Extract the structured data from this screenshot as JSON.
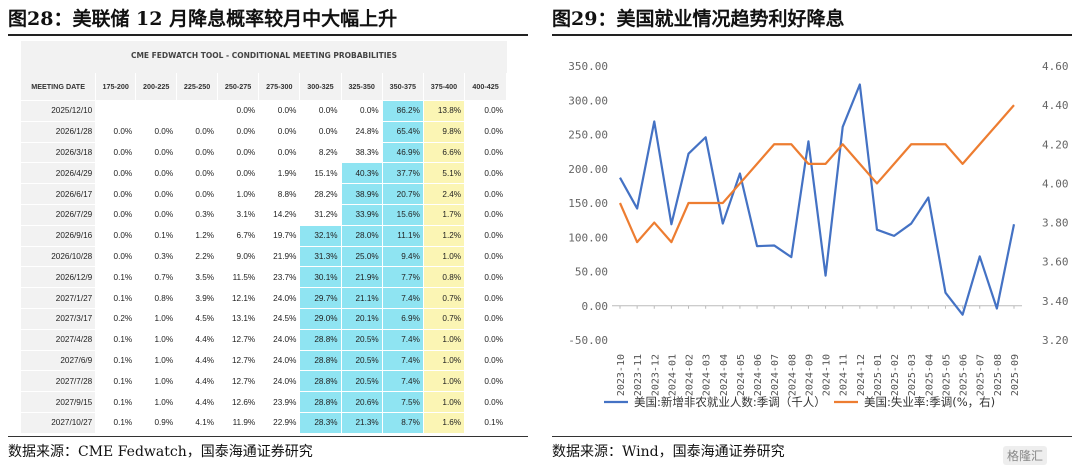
{
  "left_panel": {
    "title": "图28：美联储 12 月降息概率较月中大幅上升",
    "table_banner": "CME FEDWATCH TOOL - CONDITIONAL MEETING PROBABILITIES",
    "source": "数据来源：CME Fedwatch，国泰海通证券研究",
    "colors": {
      "highlight_max": "#8fe4f2",
      "highlight_second": "#fbf5b4",
      "background": "#f2f2f2"
    }
  },
  "right_panel": {
    "title": "图29：美国就业情况趋势利好降息",
    "source": "数据来源：Wind，国泰海通证券研究",
    "watermark": "格隆汇"
  },
  "chart_data": [
    {
      "type": "table",
      "title": "CME FEDWATCH TOOL - CONDITIONAL MEETING PROBABILITIES",
      "columns": [
        "MEETING DATE",
        "175-200",
        "200-225",
        "225-250",
        "250-275",
        "275-300",
        "300-325",
        "325-350",
        "350-375",
        "375-400",
        "400-425"
      ],
      "rows": [
        {
          "date": "2025/12/10",
          "values": [
            "",
            "",
            "",
            "0.0%",
            "0.0%",
            "0.0%",
            "0.0%",
            "86.2%",
            "13.8%",
            "0.0%"
          ],
          "hl": [
            7,
            8
          ]
        },
        {
          "date": "2026/1/28",
          "values": [
            "0.0%",
            "0.0%",
            "0.0%",
            "0.0%",
            "0.0%",
            "0.0%",
            "24.8%",
            "65.4%",
            "9.8%",
            "0.0%"
          ],
          "hl": [
            7,
            8
          ]
        },
        {
          "date": "2026/3/18",
          "values": [
            "0.0%",
            "0.0%",
            "0.0%",
            "0.0%",
            "0.0%",
            "8.2%",
            "38.3%",
            "46.9%",
            "6.6%",
            "0.0%"
          ],
          "hl": [
            7,
            8
          ]
        },
        {
          "date": "2026/4/29",
          "values": [
            "0.0%",
            "0.0%",
            "0.0%",
            "0.0%",
            "1.9%",
            "15.1%",
            "40.3%",
            "37.7%",
            "5.1%",
            "0.0%"
          ],
          "hl": [
            6,
            7,
            8
          ]
        },
        {
          "date": "2026/6/17",
          "values": [
            "0.0%",
            "0.0%",
            "0.0%",
            "1.0%",
            "8.8%",
            "28.2%",
            "38.9%",
            "20.7%",
            "2.4%",
            "0.0%"
          ],
          "hl": [
            6,
            7,
            8
          ]
        },
        {
          "date": "2026/7/29",
          "values": [
            "0.0%",
            "0.0%",
            "0.3%",
            "3.1%",
            "14.2%",
            "31.2%",
            "33.9%",
            "15.6%",
            "1.7%",
            "0.0%"
          ],
          "hl": [
            6,
            7,
            8
          ]
        },
        {
          "date": "2026/9/16",
          "values": [
            "0.0%",
            "0.1%",
            "1.2%",
            "6.7%",
            "19.7%",
            "32.1%",
            "28.0%",
            "11.1%",
            "1.2%",
            "0.0%"
          ],
          "hl": [
            5,
            6,
            7,
            8
          ]
        },
        {
          "date": "2026/10/28",
          "values": [
            "0.0%",
            "0.3%",
            "2.2%",
            "9.0%",
            "21.9%",
            "31.3%",
            "25.0%",
            "9.4%",
            "1.0%",
            "0.0%"
          ],
          "hl": [
            5,
            6,
            7,
            8
          ]
        },
        {
          "date": "2026/12/9",
          "values": [
            "0.1%",
            "0.7%",
            "3.5%",
            "11.5%",
            "23.7%",
            "30.1%",
            "21.9%",
            "7.7%",
            "0.8%",
            "0.0%"
          ],
          "hl": [
            5,
            6,
            7,
            8
          ]
        },
        {
          "date": "2027/1/27",
          "values": [
            "0.1%",
            "0.8%",
            "3.9%",
            "12.1%",
            "24.0%",
            "29.7%",
            "21.1%",
            "7.4%",
            "0.7%",
            "0.0%"
          ],
          "hl": [
            5,
            6,
            7,
            8
          ]
        },
        {
          "date": "2027/3/17",
          "values": [
            "0.2%",
            "1.0%",
            "4.5%",
            "13.1%",
            "24.5%",
            "29.0%",
            "20.1%",
            "6.9%",
            "0.7%",
            "0.0%"
          ],
          "hl": [
            5,
            6,
            7,
            8
          ]
        },
        {
          "date": "2027/4/28",
          "values": [
            "0.1%",
            "1.0%",
            "4.4%",
            "12.7%",
            "24.0%",
            "28.8%",
            "20.5%",
            "7.4%",
            "1.0%",
            "0.0%"
          ],
          "hl": [
            5,
            6,
            7,
            8
          ]
        },
        {
          "date": "2027/6/9",
          "values": [
            "0.1%",
            "1.0%",
            "4.4%",
            "12.7%",
            "24.0%",
            "28.8%",
            "20.5%",
            "7.4%",
            "1.0%",
            "0.0%"
          ],
          "hl": [
            5,
            6,
            7,
            8
          ]
        },
        {
          "date": "2027/7/28",
          "values": [
            "0.1%",
            "1.0%",
            "4.4%",
            "12.7%",
            "24.0%",
            "28.8%",
            "20.5%",
            "7.4%",
            "1.0%",
            "0.0%"
          ],
          "hl": [
            5,
            6,
            7,
            8
          ]
        },
        {
          "date": "2027/9/15",
          "values": [
            "0.1%",
            "1.0%",
            "4.4%",
            "12.6%",
            "23.9%",
            "28.8%",
            "20.6%",
            "7.5%",
            "1.0%",
            "0.0%"
          ],
          "hl": [
            5,
            6,
            7,
            8
          ]
        },
        {
          "date": "2027/10/27",
          "values": [
            "0.1%",
            "0.9%",
            "4.1%",
            "11.9%",
            "22.9%",
            "28.3%",
            "21.3%",
            "8.7%",
            "1.6%",
            "0.1%"
          ],
          "hl": [
            5,
            6,
            7,
            8
          ]
        }
      ]
    },
    {
      "type": "line",
      "x": [
        "2023-10",
        "2023-11",
        "2023-12",
        "2024-01",
        "2024-02",
        "2024-03",
        "2024-04",
        "2024-05",
        "2024-06",
        "2024-07",
        "2024-08",
        "2024-09",
        "2024-10",
        "2024-11",
        "2024-12",
        "2025-01",
        "2025-02",
        "2025-03",
        "2025-04",
        "2025-05",
        "2025-06",
        "2025-07",
        "2025-08",
        "2025-09"
      ],
      "yticks_left": [
        "-50.00",
        "0.00",
        "50.00",
        "100.00",
        "150.00",
        "200.00",
        "250.00",
        "300.00",
        "350.00"
      ],
      "yticks_right": [
        "3.20",
        "3.40",
        "3.60",
        "3.80",
        "4.00",
        "4.20",
        "4.40",
        "4.60"
      ],
      "ylim_left": [
        -50,
        350
      ],
      "ylim_right": [
        3.2,
        4.6
      ],
      "series": [
        {
          "name": "美国:新增非农就业人数:季调（千人）",
          "axis": "left",
          "color": "#4472c4",
          "values": [
            187,
            142,
            269,
            119,
            222,
            246,
            120,
            193,
            87,
            88,
            71,
            240,
            44,
            261,
            323,
            111,
            102,
            120,
            158,
            19,
            -13,
            72,
            -4,
            119
          ]
        },
        {
          "name": "美国:失业率:季调(%，右)",
          "axis": "right",
          "color": "#ed7d31",
          "values": [
            3.9,
            3.7,
            3.8,
            3.7,
            3.9,
            3.9,
            3.9,
            4.0,
            4.1,
            4.2,
            4.2,
            4.1,
            4.1,
            4.2,
            4.1,
            4.0,
            4.1,
            4.2,
            4.2,
            4.2,
            4.1,
            4.2,
            4.3,
            4.4
          ]
        }
      ],
      "legend_position": "bottom",
      "grid": false
    }
  ]
}
